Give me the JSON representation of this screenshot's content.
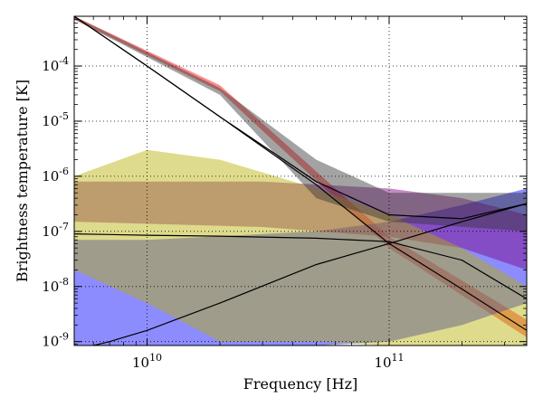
{
  "chart_data": {
    "type": "line",
    "title": "",
    "xlabel": "Frequency [Hz]",
    "ylabel": "Brightness temperature [K]",
    "xscale": "log",
    "yscale": "log",
    "xlim": [
      5000000000.0,
      370000000000.0
    ],
    "ylim": [
      8.5e-10,
      0.0008
    ],
    "grid": true,
    "xticks": [
      {
        "value": 10000000000.0,
        "base": "10",
        "exp": "10"
      },
      {
        "value": 100000000000.0,
        "base": "10",
        "exp": "11"
      }
    ],
    "yticks": [
      {
        "value": 1e-09,
        "base": "10",
        "exp": "-9"
      },
      {
        "value": 1e-08,
        "base": "10",
        "exp": "-8"
      },
      {
        "value": 1e-07,
        "base": "10",
        "exp": "-7"
      },
      {
        "value": 1e-06,
        "base": "10",
        "exp": "-6"
      },
      {
        "value": 1e-05,
        "base": "10",
        "exp": "-5"
      },
      {
        "value": 0.0001,
        "base": "10",
        "exp": "-4"
      }
    ],
    "bands": [
      {
        "color": "#ff0000",
        "x": [
          5000000000.0,
          20000000000.0,
          100000000000.0,
          370000000000.0
        ],
        "lo": [
          0.0007,
          3.5e-05,
          5e-08,
          1.2e-09
        ],
        "hi": [
          0.0008,
          4.5e-05,
          8e-08,
          2.5e-09
        ]
      },
      {
        "color": "#0000ff",
        "x": [
          5000000000.0,
          10000000000.0,
          50000000000.0,
          100000000000.0,
          200000000000.0,
          370000000000.0
        ],
        "lo": [
          8.5e-10,
          8.5e-10,
          8.5e-10,
          1e-09,
          2e-09,
          5e-09
        ],
        "hi": [
          7e-08,
          7e-08,
          1e-07,
          1.5e-07,
          3e-07,
          6e-07
        ]
      },
      {
        "color": "#7a0080",
        "x": [
          5000000000.0,
          30000000000.0,
          100000000000.0,
          200000000000.0,
          370000000000.0
        ],
        "lo": [
          1.5e-07,
          1.2e-07,
          8e-08,
          5e-08,
          2e-08
        ],
        "hi": [
          8e-07,
          8e-07,
          6e-07,
          4e-07,
          2e-07
        ]
      },
      {
        "color": "#b5b000",
        "x": [
          5000000000.0,
          10000000000.0,
          20000000000.0,
          50000000000.0,
          100000000000.0,
          200000000000.0,
          370000000000.0
        ],
        "lo": [
          2e-08,
          5e-09,
          1e-09,
          1e-09,
          8.5e-10,
          8.5e-10,
          8.5e-10
        ],
        "hi": [
          1e-06,
          3e-06,
          2e-06,
          6e-07,
          2e-07,
          5e-08,
          1e-08
        ]
      },
      {
        "color": "#333333",
        "x": [
          5000000000.0,
          20000000000.0,
          50000000000.0,
          100000000000.0,
          370000000000.0
        ],
        "lo": [
          0.0007,
          3e-05,
          4e-07,
          1.5e-07,
          1e-07
        ],
        "hi": [
          0.0008,
          4e-05,
          2e-06,
          5e-07,
          5e-07
        ]
      }
    ],
    "series": [
      {
        "color": "#000000",
        "x": [
          5000000000.0,
          10000000000.0,
          20000000000.0,
          50000000000.0,
          100000000000.0,
          200000000000.0,
          370000000000.0
        ],
        "y": [
          0.0008,
          0.0001,
          1.2e-05,
          8e-07,
          2e-07,
          1.7e-07,
          3.2e-07
        ]
      },
      {
        "color": "#000000",
        "x": [
          5000000000.0,
          10000000000.0,
          20000000000.0,
          50000000000.0,
          100000000000.0,
          200000000000.0,
          370000000000.0
        ],
        "y": [
          0.0008,
          0.0001,
          1.2e-05,
          7e-07,
          6e-08,
          9e-09,
          1.6e-09
        ]
      },
      {
        "color": "#000000",
        "x": [
          5000000000.0,
          10000000000.0,
          20000000000.0,
          50000000000.0,
          100000000000.0,
          200000000000.0,
          370000000000.0
        ],
        "y": [
          9e-08,
          8.5e-08,
          8.2e-08,
          7.5e-08,
          6.5e-08,
          3e-08,
          6e-09
        ]
      },
      {
        "color": "#000000",
        "x": [
          5000000000.0,
          7000000000.0,
          10000000000.0,
          20000000000.0,
          50000000000.0,
          100000000000.0,
          200000000000.0,
          370000000000.0
        ],
        "y": [
          7e-10,
          1e-09,
          1.6e-09,
          5e-09,
          2.5e-08,
          6e-08,
          1.5e-07,
          3.2e-07
        ]
      }
    ]
  }
}
